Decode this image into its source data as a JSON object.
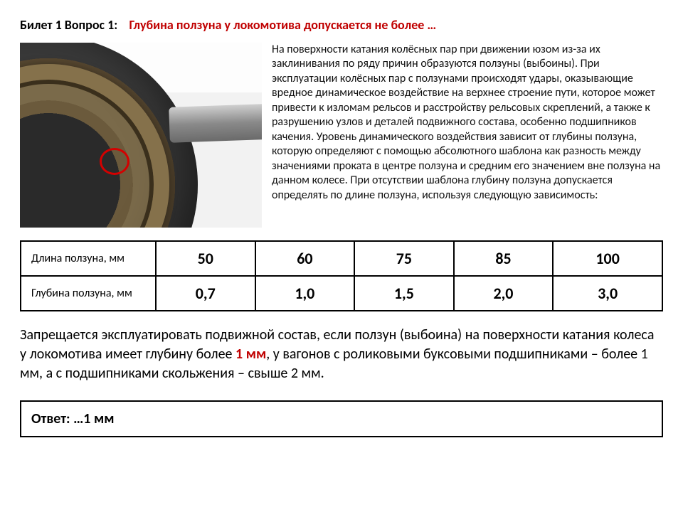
{
  "header": {
    "prefix": "Билет 1  Вопрос 1:",
    "question": "Глубина ползуна у локомотива допускается не более …"
  },
  "explanation": "На поверхности катания колёсных пар при движении юзом из-за их заклинивания по ряду причин образуются ползуны (выбоины). При эксплуатации колёсных пар с ползунами происходят удары, оказывающие вредное динамическое воздействие на верхнее строение пути, которое может привести к изломам рельсов и расстройству рельсовых скреплений, а также к разрушению узлов и деталей подвижного состава, особенно подшипников качения. Уровень динамического воздействия зависит от глубины ползуна, которую определяют с помощью абсолютного шаблона как разность между значениями проката в центре ползуна и средним его значением вне ползуна на данном колесе. При отсутствии шаблона глубину ползуна допускается определять по длине ползуна, используя следующую зависимость:",
  "table": {
    "row_headers": [
      "Длина ползуна, мм",
      "Глубина ползуна, мм"
    ],
    "lengths": [
      "50",
      "60",
      "75",
      "85",
      "100"
    ],
    "depths": [
      "0,7",
      "1,0",
      "1,5",
      "2,0",
      "3,0"
    ],
    "border_color": "#000000",
    "header_fontsize": 16,
    "cell_fontsize": 22,
    "cell_fontweight": 700
  },
  "prohibition": {
    "before": "Запрещается эксплуатировать подвижной состав, если ползун (выбоина) на поверхности катания колеса у локомотива имеет глубину более ",
    "hl": "1 мм",
    "after": ", у вагонов с роликовыми буксовыми подшипниками – более 1 мм, а с подшипниками скольжения – свыше 2 мм."
  },
  "answer": {
    "label": "Ответ: ",
    "value": "…1 мм"
  },
  "colors": {
    "accent_red": "#c00000",
    "text": "#000000",
    "background": "#ffffff"
  }
}
